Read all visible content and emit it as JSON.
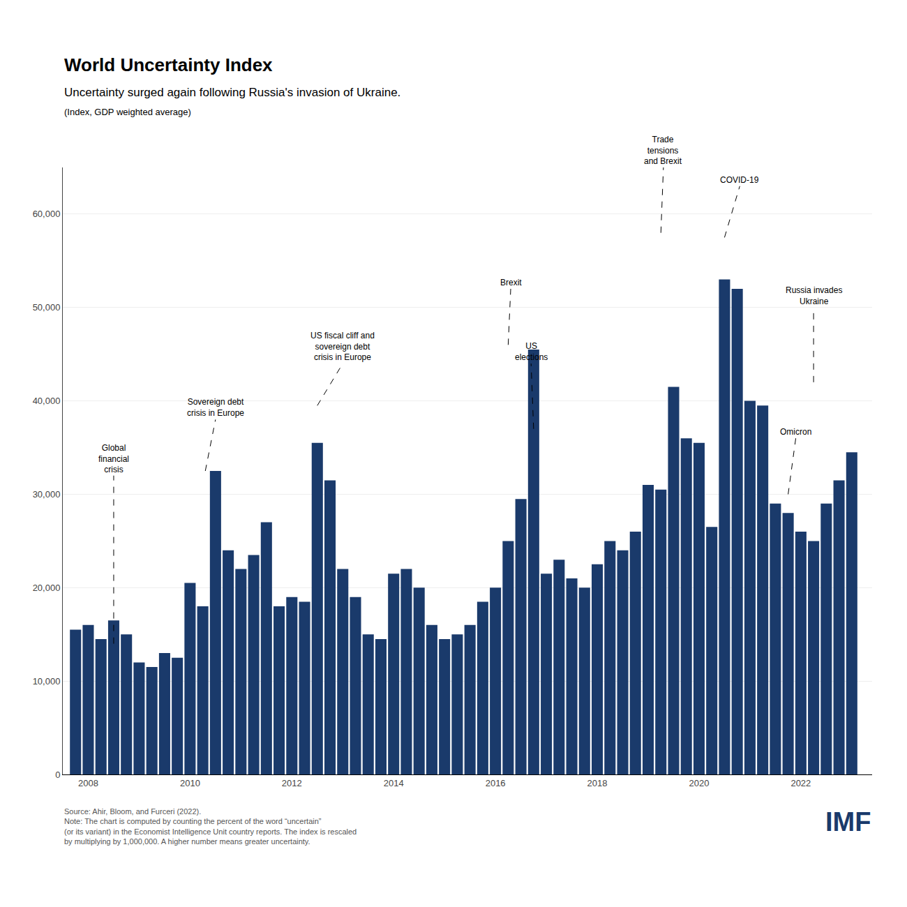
{
  "chart_data": {
    "type": "bar",
    "title": "World Uncertainty Index",
    "subtitle": "Uncertainty surged again following Russia's invasion of Ukraine.",
    "subtitle2": "(Index, GDP weighted average)",
    "source": "Source: Ahir, Bloom, and Furceri (2022).\nNote: The chart is computed by counting the percent of the word “uncertain”\n(or its variant) in the Economist Intelligence Unit country reports. The index is rescaled\nby multiplying by 1,000,000. A higher number means greater uncertainty.",
    "logo": "IMF",
    "color": "#1a3a6b",
    "grid": true,
    "xlim": [
      2007.5,
      2023.4
    ],
    "xticks": [
      2008,
      2010,
      2012,
      2014,
      2016,
      2018,
      2020,
      2022
    ],
    "ylim": [
      0,
      65000
    ],
    "yticks": [
      0,
      {
        "value": 10000,
        "label": "10,000"
      },
      {
        "value": 20000,
        "label": "20,000"
      },
      {
        "value": 30000,
        "label": "30,000"
      },
      {
        "value": 40000,
        "label": "40,000"
      },
      {
        "value": 50000,
        "label": "50,000"
      },
      {
        "value": 60000,
        "label": "60,000"
      }
    ],
    "annotations": [
      {
        "text": "Global\nfinancial\ncrisis",
        "x": 2008.5,
        "y": 32000,
        "ax": 2008.5,
        "ay": 14000
      },
      {
        "text": "Sovereign debt\ncrisis in Europe",
        "x": 2010.5,
        "y": 38000,
        "ax": 2010.3,
        "ay": 32500
      },
      {
        "text": "US fiscal cliff and\nsovereign debt\ncrisis in Europe",
        "x": 2013.0,
        "y": 44000,
        "ax": 2012.5,
        "ay": 39500
      },
      {
        "text": "Brexit",
        "x": 2016.3,
        "y": 52000,
        "ax": 2016.25,
        "ay": 46000
      },
      {
        "text": "US\nelections",
        "x": 2016.7,
        "y": 44000,
        "ax": 2016.75,
        "ay": 37000
      },
      {
        "text": "Trade\ntensions\nand Brexit",
        "x": 2019.3,
        "y": 65000,
        "ax": 2019.25,
        "ay": 58000
      },
      {
        "text": "COVID-19",
        "x": 2020.8,
        "y": 63000,
        "ax": 2020.5,
        "ay": 57500
      },
      {
        "text": "Omicron",
        "x": 2021.9,
        "y": 36000,
        "ax": 2021.75,
        "ay": 30000
      },
      {
        "text": "Russia invades\nUkraine",
        "x": 2022.25,
        "y": 50000,
        "ax": 2022.25,
        "ay": 42000
      }
    ],
    "x": [
      2007.75,
      2008.0,
      2008.25,
      2008.5,
      2008.75,
      2009.0,
      2009.25,
      2009.5,
      2009.75,
      2010.0,
      2010.25,
      2010.5,
      2010.75,
      2011.0,
      2011.25,
      2011.5,
      2011.75,
      2012.0,
      2012.25,
      2012.5,
      2012.75,
      2013.0,
      2013.25,
      2013.5,
      2013.75,
      2014.0,
      2014.25,
      2014.5,
      2014.75,
      2015.0,
      2015.25,
      2015.5,
      2015.75,
      2016.0,
      2016.25,
      2016.5,
      2016.75,
      2017.0,
      2017.25,
      2017.5,
      2017.75,
      2018.0,
      2018.25,
      2018.5,
      2018.75,
      2019.0,
      2019.25,
      2019.5,
      2019.75,
      2020.0,
      2020.25,
      2020.5,
      2020.75,
      2021.0,
      2021.25,
      2021.5,
      2021.75,
      2022.0,
      2022.25,
      2022.5,
      2022.75,
      2023.0
    ],
    "values": [
      15500,
      16000,
      14500,
      16500,
      15000,
      12000,
      11500,
      13000,
      12500,
      20500,
      18000,
      32500,
      24000,
      22000,
      23500,
      27000,
      18000,
      19000,
      18500,
      35500,
      31500,
      22000,
      19000,
      15000,
      14500,
      21500,
      22000,
      20000,
      16000,
      14500,
      15000,
      16000,
      18500,
      20000,
      25000,
      29500,
      45500,
      21500,
      23000,
      21000,
      20000,
      22500,
      25000,
      24000,
      26000,
      31000,
      30500,
      41500,
      36000,
      35500,
      26500,
      53000,
      52000,
      40000,
      39500,
      29000,
      28000,
      26000,
      25000,
      29000,
      31500,
      34500
    ]
  }
}
